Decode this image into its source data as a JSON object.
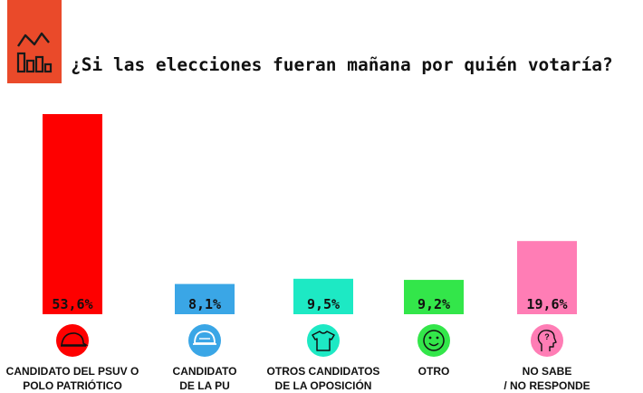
{
  "title": "¿Si las elecciones fueran mañana por quién votaría?",
  "logo": {
    "icon": "bar-chart-trend-icon",
    "color": "#ea4a2a"
  },
  "chart_data": {
    "type": "bar",
    "title": "¿Si las elecciones fueran mañana por quién votaría?",
    "categories": [
      "CANDIDATO DEL PSUV O\nPOLO PATRIÓTICO",
      "CANDIDATO\nDE LA PU",
      "OTROS CANDIDATOS\nDE LA OPOSICIÓN",
      "OTRO",
      "NO SABE\n/ NO RESPONDE"
    ],
    "values": [
      53.6,
      8.1,
      9.5,
      9.2,
      19.6
    ],
    "value_labels": [
      "53,6%",
      "8,1%",
      "9,5%",
      "9,2%",
      "19,6%"
    ],
    "colors": [
      "#fe0000",
      "#3aa6e6",
      "#1de9c4",
      "#33e64a",
      "#ff7db5"
    ],
    "icons": [
      "cap-icon",
      "helmet-icon",
      "shirt-icon",
      "smiley-icon",
      "thinking-head-icon"
    ],
    "ylim": [
      0,
      53.6
    ],
    "grid": false,
    "legend": "none"
  }
}
